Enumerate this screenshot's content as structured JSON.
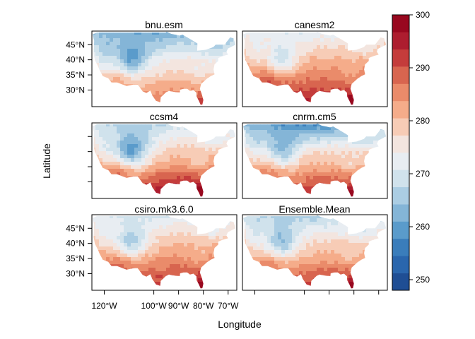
{
  "chart_data": {
    "type": "heatmap",
    "description_note": "lattice levelplot of temperature over the contiguous US, six panels",
    "xlabel": "Longitude",
    "ylabel": "Latitude",
    "x_ticks": [
      "120°W",
      "100°W",
      "90°W",
      "80°W",
      "70°W"
    ],
    "x_tick_values": [
      -120,
      -100,
      -90,
      -80,
      -70
    ],
    "y_ticks": [
      "30°N",
      "35°N",
      "40°N",
      "45°N"
    ],
    "y_tick_values": [
      30,
      35,
      40,
      45
    ],
    "xlim": [
      -125,
      -66.5
    ],
    "ylim": [
      24.5,
      49.5
    ],
    "colorbar": {
      "min": 248,
      "max": 300,
      "tick_labels": [
        "250",
        "260",
        "270",
        "280",
        "290",
        "300"
      ],
      "tick_values": [
        250,
        260,
        270,
        280,
        290,
        300
      ],
      "colors": [
        "#1f4e94",
        "#2a66ad",
        "#3a7dbb",
        "#5a9bcb",
        "#84b5d7",
        "#abcde3",
        "#d0e2ec",
        "#e8edf2",
        "#f3e5df",
        "#f7ccb6",
        "#f5ac8a",
        "#ea8b6a",
        "#d8654f",
        "#c43c3b",
        "#ad1d2f",
        "#98081f"
      ]
    },
    "panels": [
      {
        "name": "bnu.esm",
        "anomaly": -4,
        "north_cold": 6,
        "west_cold": 3,
        "south_warm": 3
      },
      {
        "name": "canesm2",
        "anomaly": 3,
        "north_cold": 3,
        "west_cold": 1,
        "south_warm": 3
      },
      {
        "name": "ccsm4",
        "anomaly": 1,
        "north_cold": 4,
        "west_cold": 8,
        "south_warm": 9
      },
      {
        "name": "cnrm.cm5",
        "anomaly": -1,
        "north_cold": 13,
        "west_cold": 2,
        "south_warm": 7
      },
      {
        "name": "csiro.mk3.6.0",
        "anomaly": 2,
        "north_cold": 3,
        "west_cold": 3,
        "south_warm": 2
      },
      {
        "name": "Ensemble.Mean",
        "anomaly": 0,
        "north_cold": 5,
        "west_cold": 3,
        "south_warm": 4
      }
    ]
  }
}
